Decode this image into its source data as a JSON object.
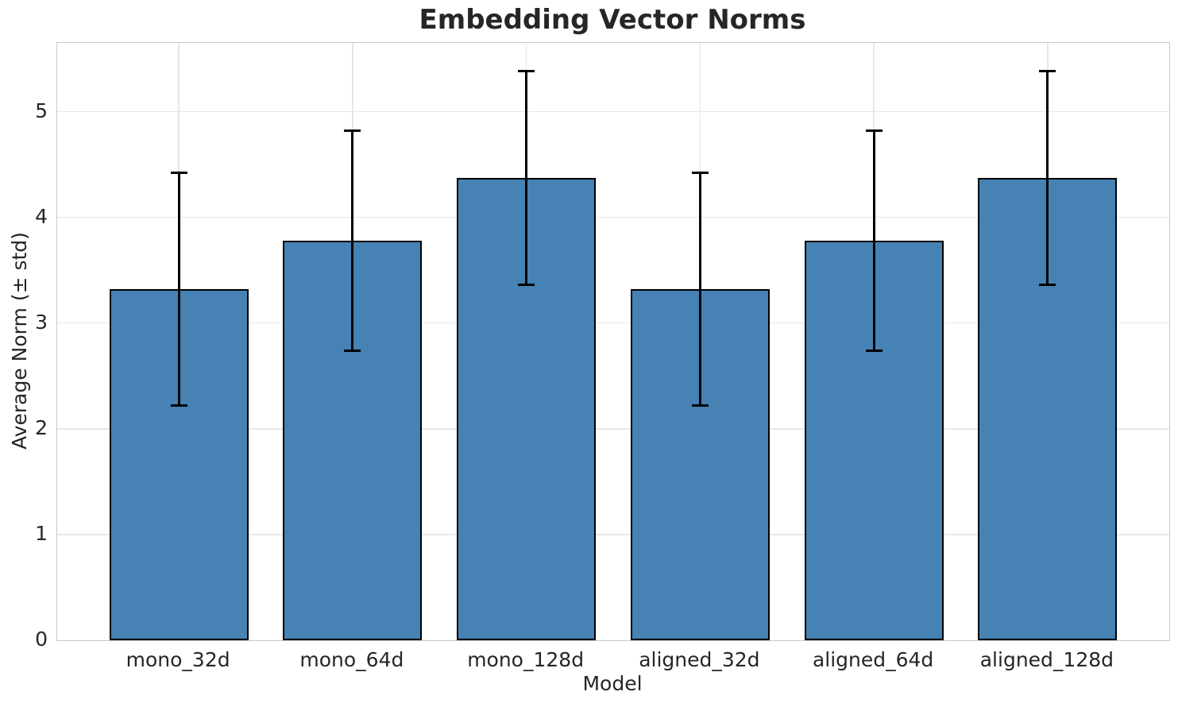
{
  "chart_data": {
    "type": "bar",
    "title": "Embedding Vector Norms",
    "xlabel": "Model",
    "ylabel": "Average Norm (± std)",
    "categories": [
      "mono_32d",
      "mono_64d",
      "mono_128d",
      "aligned_32d",
      "aligned_64d",
      "aligned_128d"
    ],
    "values": [
      3.32,
      3.78,
      4.37,
      3.32,
      3.78,
      4.37
    ],
    "errors": [
      1.1,
      1.04,
      1.01,
      1.1,
      1.04,
      1.01
    ],
    "yticks": [
      0,
      1,
      2,
      3,
      4,
      5
    ],
    "ylim": [
      0,
      5.65
    ],
    "grid": "both",
    "legend": "none",
    "colors": {
      "bar_fill": "#4682B4",
      "bar_edge": "#000000",
      "error_bar": "#000000",
      "grid_line": "#e7e7e7",
      "spine": "#c9c9c9",
      "text": "#262626",
      "background": "#ffffff"
    }
  }
}
